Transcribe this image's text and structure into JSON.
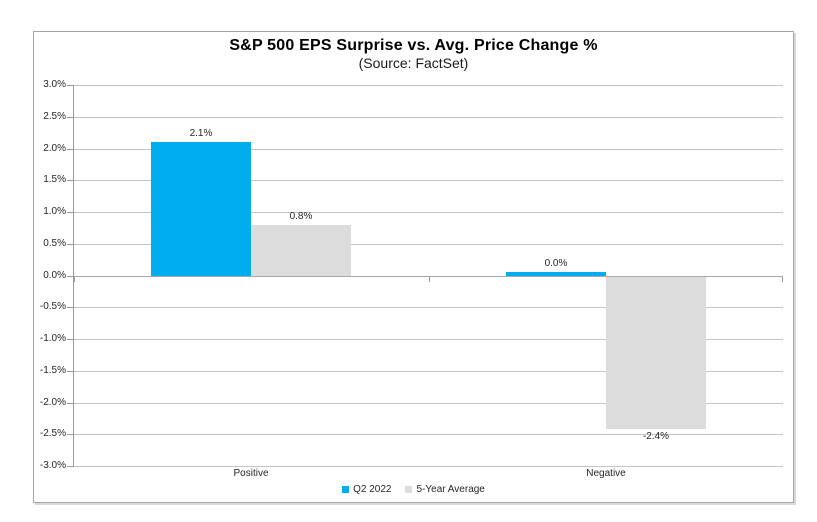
{
  "chart_data": {
    "type": "bar",
    "title": "S&P 500 EPS Surprise vs. Avg. Price Change %",
    "subtitle": "(Source: FactSet)",
    "categories": [
      "Positive",
      "Negative"
    ],
    "series": [
      {
        "name": "Q2 2022",
        "color": "#00AEEF",
        "values": [
          2.1,
          0.0
        ],
        "data_labels": [
          "2.1%",
          "0.0%"
        ]
      },
      {
        "name": "5-Year Average",
        "color": "#DCDCDC",
        "values": [
          0.8,
          -2.4
        ],
        "data_labels": [
          "0.8%",
          "-2.4%"
        ]
      }
    ],
    "ylim": [
      -3.0,
      3.0
    ],
    "ytick_step": 0.5,
    "ytick_labels": [
      "3.0%",
      "2.5%",
      "2.0%",
      "1.5%",
      "1.0%",
      "0.5%",
      "0.0%",
      "-0.5%",
      "-1.0%",
      "-1.5%",
      "-2.0%",
      "-2.5%",
      "-3.0%"
    ],
    "grid": true,
    "legend_position": "bottom",
    "colors": {
      "gridline": "#C5C5C5",
      "axis": "#999999",
      "text": "#262626",
      "frame_border": "#A6A6A6"
    }
  }
}
